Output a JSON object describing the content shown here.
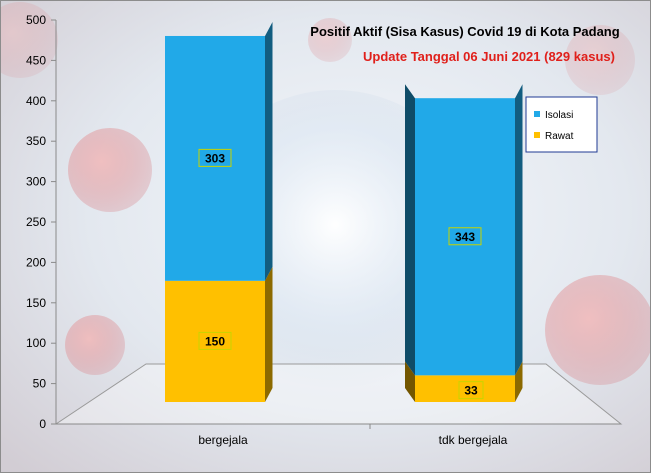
{
  "chart_data": {
    "type": "bar",
    "stacked": true,
    "title": "Positif Aktif  (Sisa Kasus) Covid 19 di Kota Padang",
    "subtitle": "Update Tanggal  06 Juni 2021  (829 kasus)",
    "categories": [
      "bergejala",
      "tdk bergejala"
    ],
    "series": [
      {
        "name": "Rawat",
        "values": [
          150,
          33
        ],
        "color": "#FFC000"
      },
      {
        "name": "Isolasi",
        "values": [
          303,
          343
        ],
        "color": "#21A9E8"
      }
    ],
    "data_labels": [
      [
        "150",
        "33"
      ],
      [
        "303",
        "343"
      ]
    ],
    "ylim": [
      0,
      500
    ],
    "yticks": [
      0,
      50,
      100,
      150,
      200,
      250,
      300,
      350,
      400,
      450,
      500
    ],
    "xlabel": "",
    "ylabel": "",
    "grid": false,
    "legend_position": "right",
    "legend_entries": [
      "Isolasi",
      "Rawat"
    ],
    "colors": {
      "title": "#000000",
      "subtitle": "#E0201B",
      "legend_border": "#1F3A93",
      "label_box_border": "#C8D400"
    }
  }
}
